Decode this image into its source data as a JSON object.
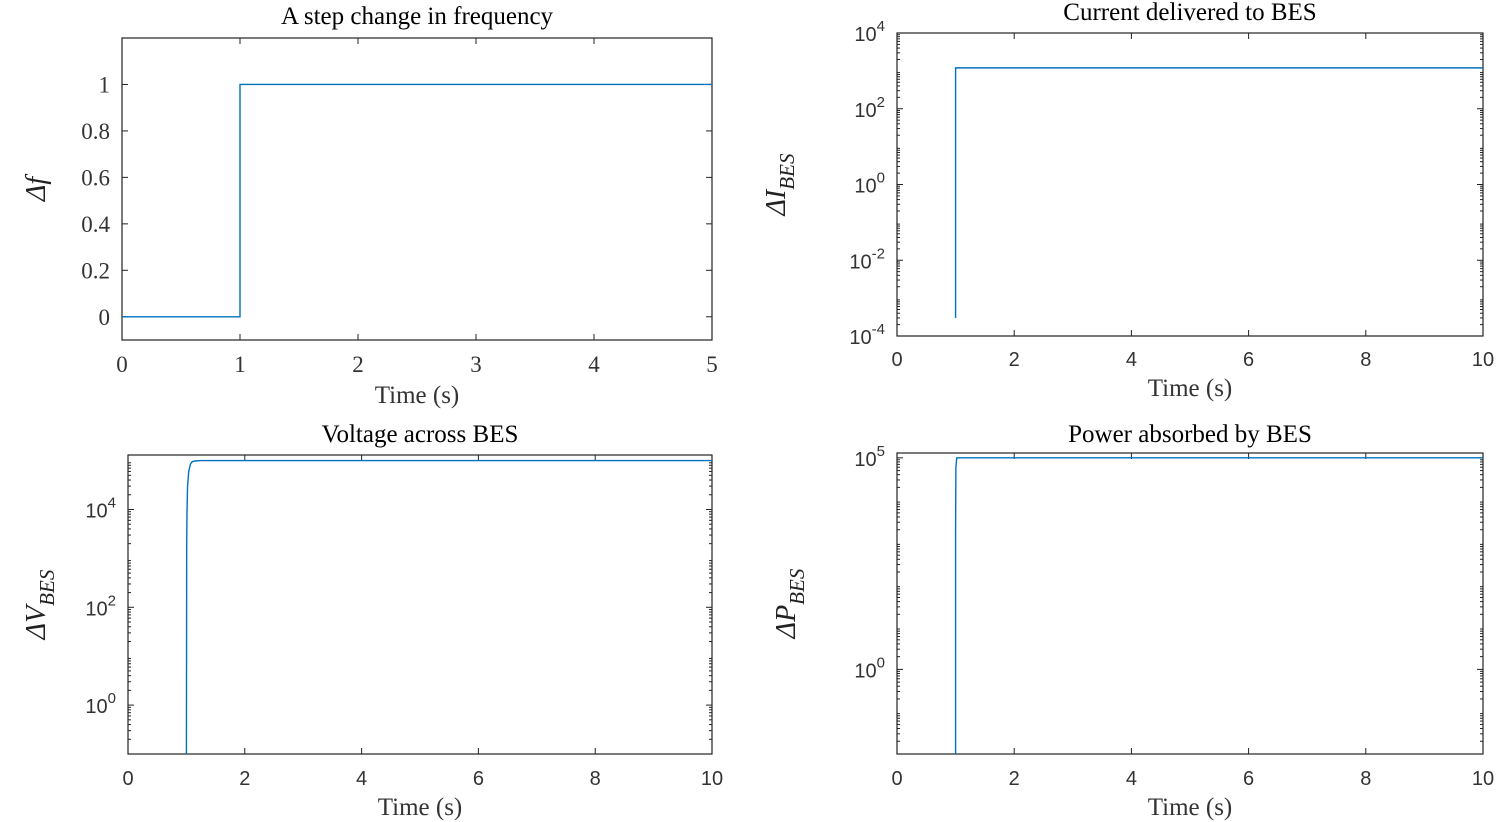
{
  "chart_data": [
    {
      "id": "freq",
      "type": "line",
      "title": "A step change in frequency",
      "xlabel": "Time (s)",
      "ylabel": {
        "main": "Δf",
        "sub": ""
      },
      "xlim": [
        0,
        5
      ],
      "ylim": [
        -0.1,
        1.2
      ],
      "yscale": "linear",
      "xticks": [
        0,
        1,
        2,
        3,
        4,
        5
      ],
      "xtick_labels": [
        "0",
        "1",
        "2",
        "3",
        "4",
        "5"
      ],
      "yticks": [
        0,
        0.2,
        0.4,
        0.6,
        0.8,
        1
      ],
      "ytick_labels": [
        "0",
        "0.2",
        "0.4",
        "0.6",
        "0.8",
        "1"
      ],
      "grid": false,
      "series": [
        {
          "x": [
            0,
            1,
            1,
            5
          ],
          "y": [
            0,
            0,
            1,
            1
          ]
        }
      ]
    },
    {
      "id": "current",
      "type": "line",
      "title": "Current delivered to BES",
      "xlabel": "Time (s)",
      "ylabel": {
        "main": "ΔI",
        "sub": "BES"
      },
      "xlim": [
        0,
        10
      ],
      "ylim": [
        0.0001,
        10000
      ],
      "yscale": "log",
      "xticks": [
        0,
        2,
        4,
        6,
        8,
        10
      ],
      "xtick_labels": [
        "0",
        "2",
        "4",
        "6",
        "8",
        "10"
      ],
      "yticks": [
        0.0001,
        0.01,
        1,
        100,
        10000
      ],
      "ytick_labels": [
        {
          "base": "10",
          "exp": "-4"
        },
        {
          "base": "10",
          "exp": "-2"
        },
        {
          "base": "10",
          "exp": "0"
        },
        {
          "base": "10",
          "exp": "2"
        },
        {
          "base": "10",
          "exp": "4"
        }
      ],
      "grid": false,
      "series": [
        {
          "x": [
            1,
            1,
            10
          ],
          "y": [
            0.0003,
            1200,
            1200
          ]
        }
      ]
    },
    {
      "id": "voltage",
      "type": "line",
      "title": "Voltage across BES",
      "xlabel": "Time (s)",
      "ylabel": {
        "main": "ΔV",
        "sub": "BES"
      },
      "xlim": [
        0,
        10
      ],
      "ylim": [
        0.1,
        130000
      ],
      "yscale": "log",
      "xticks": [
        0,
        2,
        4,
        6,
        8,
        10
      ],
      "xtick_labels": [
        "0",
        "2",
        "4",
        "6",
        "8",
        "10"
      ],
      "yticks": [
        1,
        100,
        10000
      ],
      "ytick_labels": [
        {
          "base": "10",
          "exp": "0"
        },
        {
          "base": "10",
          "exp": "2"
        },
        {
          "base": "10",
          "exp": "4"
        }
      ],
      "grid": false,
      "series": [
        {
          "x": [
            1,
            1.005,
            1.01,
            1.02,
            1.04,
            1.07,
            1.1,
            1.15,
            1.25,
            10
          ],
          "y": [
            0.1,
            2000,
            8000,
            30000,
            60000,
            85000,
            95000,
            98000,
            100000,
            100000
          ]
        }
      ]
    },
    {
      "id": "power",
      "type": "line",
      "title": "Power absorbed by BES",
      "xlabel": "Time (s)",
      "ylabel": {
        "main": "ΔP",
        "sub": "BES"
      },
      "xlim": [
        0,
        10
      ],
      "ylim": [
        0.01,
        130000
      ],
      "yscale": "log",
      "xticks": [
        0,
        2,
        4,
        6,
        8,
        10
      ],
      "xtick_labels": [
        "0",
        "2",
        "4",
        "6",
        "8",
        "10"
      ],
      "yticks": [
        1,
        100000
      ],
      "ytick_labels": [
        {
          "base": "10",
          "exp": "0"
        },
        {
          "base": "10",
          "exp": "5"
        }
      ],
      "grid": false,
      "series": [
        {
          "x": [
            1,
            1,
            1.005,
            1.02,
            10
          ],
          "y": [
            0.01,
            2000,
            60000,
            100000,
            100000
          ]
        }
      ]
    }
  ]
}
